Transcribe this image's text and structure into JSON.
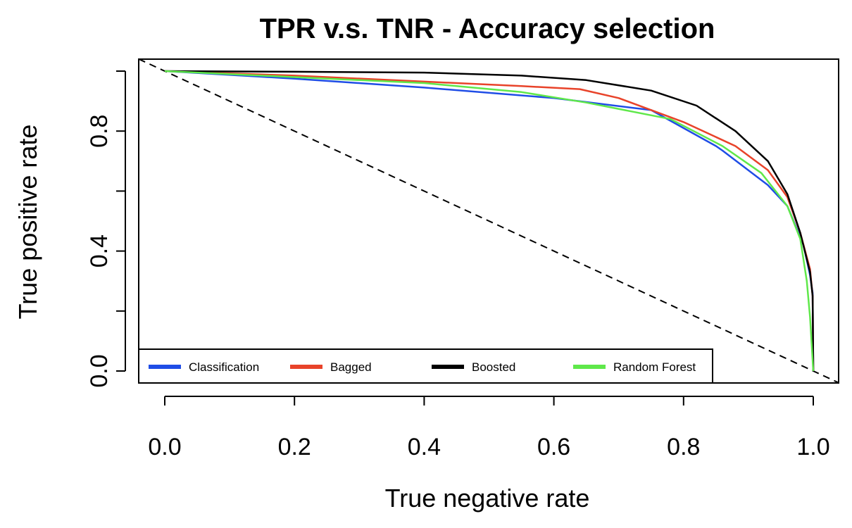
{
  "chart_data": {
    "type": "line",
    "title": "TPR v.s. TNR - Accuracy selection",
    "xlabel": "True negative rate",
    "ylabel": "True positive rate",
    "xlim": [
      0,
      1
    ],
    "ylim": [
      0,
      1
    ],
    "x_ticks": [
      "0.0",
      "0.2",
      "0.4",
      "0.6",
      "0.8",
      "1.0"
    ],
    "y_ticks": [
      "0.0",
      "0.4",
      "0.8"
    ],
    "y_minor_ticks": [
      0.2,
      0.6,
      1.0
    ],
    "grid": false,
    "legend_position": "bottom",
    "reference_line": {
      "style": "dashed",
      "color": "#000000",
      "from": [
        0,
        1
      ],
      "to": [
        1,
        0
      ]
    },
    "series": [
      {
        "name": "Classification",
        "color": "#1f4de6",
        "x": [
          0,
          0.2,
          0.4,
          0.6,
          0.75,
          0.85,
          0.86,
          0.93,
          0.96,
          0.985,
          0.995,
          0.999,
          1.0
        ],
        "y": [
          1.0,
          0.975,
          0.945,
          0.91,
          0.87,
          0.75,
          0.735,
          0.62,
          0.55,
          0.42,
          0.32,
          0.26,
          0.0
        ]
      },
      {
        "name": "Bagged",
        "color": "#e8432a",
        "x": [
          0,
          0.2,
          0.4,
          0.55,
          0.64,
          0.7,
          0.8,
          0.88,
          0.93,
          0.96,
          0.98,
          0.995,
          0.999,
          1.0
        ],
        "y": [
          1.0,
          0.985,
          0.965,
          0.95,
          0.94,
          0.91,
          0.83,
          0.75,
          0.67,
          0.58,
          0.46,
          0.34,
          0.25,
          0.0
        ]
      },
      {
        "name": "Boosted",
        "color": "#000000",
        "x": [
          0,
          0.2,
          0.4,
          0.55,
          0.65,
          0.75,
          0.82,
          0.88,
          0.93,
          0.96,
          0.98,
          0.995,
          0.999,
          1.0
        ],
        "y": [
          1.0,
          0.998,
          0.995,
          0.985,
          0.97,
          0.935,
          0.885,
          0.8,
          0.7,
          0.59,
          0.46,
          0.33,
          0.25,
          0.0
        ]
      },
      {
        "name": "Random Forest",
        "color": "#5fe84a",
        "x": [
          0,
          0.2,
          0.4,
          0.55,
          0.65,
          0.78,
          0.86,
          0.92,
          0.96,
          0.98,
          0.99,
          0.995,
          1.0
        ],
        "y": [
          1.0,
          0.98,
          0.96,
          0.93,
          0.895,
          0.84,
          0.75,
          0.66,
          0.55,
          0.44,
          0.3,
          0.18,
          0.0
        ]
      }
    ]
  }
}
